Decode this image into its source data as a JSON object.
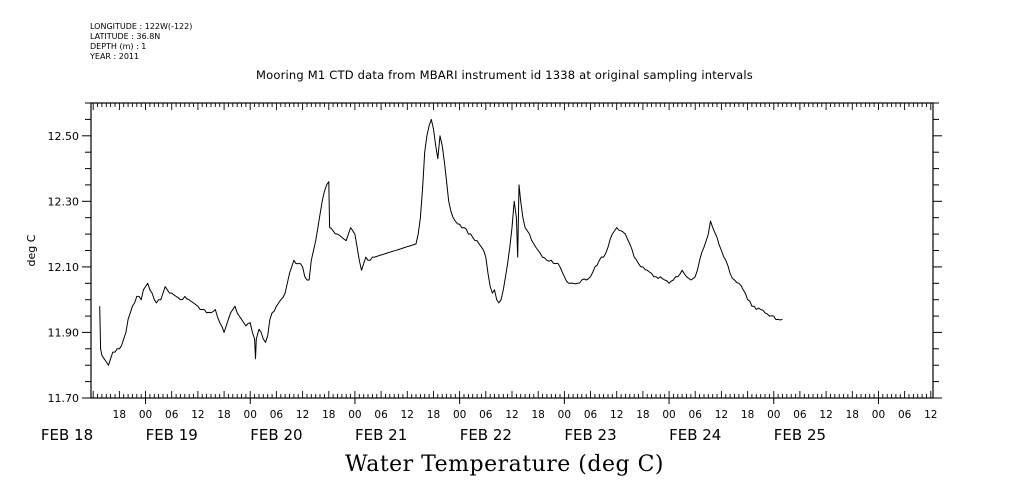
{
  "metadata": {
    "longitude": "LONGITUDE : 122W(-122)",
    "latitude": "LATITUDE : 36.8N",
    "depth": "DEPTH (m) : 1",
    "year": "YEAR : 2011"
  },
  "chart_data": {
    "type": "line",
    "title": "Mooring M1 CTD data from MBARI instrument id 1338 at original sampling intervals",
    "main_title": "Water Temperature (deg C)",
    "xlabel": "",
    "ylabel": "deg C",
    "ylim": [
      11.7,
      12.6
    ],
    "xlim_hours": [
      -12.5,
      180.5
    ],
    "y_ticks": [
      11.7,
      11.9,
      12.1,
      12.3,
      12.5
    ],
    "y_tick_labels": [
      "11.70",
      "11.90",
      "12.10",
      "12.30",
      "12.50"
    ],
    "x_hour_ticks": [
      -6,
      0,
      6,
      12,
      18,
      24,
      30,
      36,
      42,
      48,
      54,
      60,
      66,
      72,
      78,
      84,
      90,
      96,
      102,
      108,
      114,
      120,
      126,
      132,
      138,
      144,
      150,
      156,
      162,
      168,
      174,
      180
    ],
    "x_hour_labels": [
      "18",
      "00",
      "06",
      "12",
      "18",
      "00",
      "06",
      "12",
      "18",
      "00",
      "06",
      "12",
      "18",
      "00",
      "06",
      "12",
      "18",
      "00",
      "06",
      "12",
      "18",
      "00",
      "06",
      "12",
      "18",
      "00",
      "06",
      "12",
      "18",
      "00",
      "06",
      "12"
    ],
    "date_labels": [
      {
        "label": "FEB 18",
        "hour": -18
      },
      {
        "label": "FEB 19",
        "hour": 6
      },
      {
        "label": "FEB 20",
        "hour": 30
      },
      {
        "label": "FEB 21",
        "hour": 54
      },
      {
        "label": "FEB 22",
        "hour": 78
      },
      {
        "label": "FEB 23",
        "hour": 102
      },
      {
        "label": "FEB 24",
        "hour": 126
      },
      {
        "label": "FEB 25",
        "hour": 150
      }
    ],
    "x_units": "hours from 2011-02-19 00:00",
    "series": [
      {
        "values": [
          [
            -10.5,
            11.98
          ],
          [
            -10.3,
            11.85
          ],
          [
            -10,
            11.83
          ],
          [
            -9.5,
            11.82
          ],
          [
            -9,
            11.81
          ],
          [
            -8.5,
            11.8
          ],
          [
            -8,
            11.82
          ],
          [
            -7.5,
            11.84
          ],
          [
            -7,
            11.84
          ],
          [
            -6.5,
            11.85
          ],
          [
            -6,
            11.85
          ],
          [
            -5.5,
            11.86
          ],
          [
            -5,
            11.88
          ],
          [
            -4.5,
            11.9
          ],
          [
            -4,
            11.94
          ],
          [
            -3.5,
            11.96
          ],
          [
            -3,
            11.98
          ],
          [
            -2.5,
            11.99
          ],
          [
            -2,
            12.01
          ],
          [
            -1.5,
            12.01
          ],
          [
            -1,
            12.0
          ],
          [
            -0.5,
            12.03
          ],
          [
            0,
            12.04
          ],
          [
            0.5,
            12.05
          ],
          [
            1,
            12.03
          ],
          [
            1.5,
            12.02
          ],
          [
            2,
            12.0
          ],
          [
            2.5,
            11.99
          ],
          [
            3,
            12.0
          ],
          [
            3.5,
            12.0
          ],
          [
            4,
            12.02
          ],
          [
            4.5,
            12.04
          ],
          [
            5,
            12.03
          ],
          [
            5.5,
            12.02
          ],
          [
            6,
            12.02
          ],
          [
            7,
            12.01
          ],
          [
            8,
            12.0
          ],
          [
            9,
            12.01
          ],
          [
            10,
            12.0
          ],
          [
            11,
            11.99
          ],
          [
            12,
            11.98
          ],
          [
            13,
            11.97
          ],
          [
            14,
            11.96
          ],
          [
            15,
            11.96
          ],
          [
            16,
            11.97
          ],
          [
            17,
            11.93
          ],
          [
            18,
            11.9
          ],
          [
            18.5,
            11.92
          ],
          [
            19,
            11.94
          ],
          [
            19.5,
            11.96
          ],
          [
            20,
            11.97
          ],
          [
            20.5,
            11.98
          ],
          [
            21,
            11.96
          ],
          [
            21.5,
            11.95
          ],
          [
            22,
            11.94
          ],
          [
            22.5,
            11.93
          ],
          [
            23,
            11.92
          ],
          [
            24,
            11.93
          ],
          [
            24.5,
            11.9
          ],
          [
            25,
            11.88
          ],
          [
            25.2,
            11.82
          ],
          [
            25.4,
            11.88
          ],
          [
            26,
            11.91
          ],
          [
            26.5,
            11.9
          ],
          [
            27,
            11.88
          ],
          [
            27.5,
            11.87
          ],
          [
            28,
            11.89
          ],
          [
            28.5,
            11.94
          ],
          [
            29,
            11.96
          ],
          [
            30,
            11.98
          ],
          [
            31,
            12.0
          ],
          [
            32,
            12.02
          ],
          [
            32.5,
            12.05
          ],
          [
            33,
            12.08
          ],
          [
            33.5,
            12.1
          ],
          [
            34,
            12.12
          ],
          [
            34.5,
            12.11
          ],
          [
            35,
            12.11
          ],
          [
            35.5,
            12.11
          ],
          [
            36,
            12.1
          ],
          [
            36.5,
            12.07
          ],
          [
            37,
            12.06
          ],
          [
            37.5,
            12.06
          ],
          [
            38,
            12.12
          ],
          [
            38.5,
            12.15
          ],
          [
            39,
            12.18
          ],
          [
            39.5,
            12.22
          ],
          [
            40,
            12.26
          ],
          [
            40.5,
            12.3
          ],
          [
            41,
            12.33
          ],
          [
            41.5,
            12.35
          ],
          [
            42,
            12.36
          ],
          [
            42.2,
            12.22
          ],
          [
            43,
            12.21
          ],
          [
            44,
            12.2
          ],
          [
            45,
            12.19
          ],
          [
            46,
            12.18
          ],
          [
            46.5,
            12.2
          ],
          [
            47,
            12.22
          ],
          [
            47.5,
            12.21
          ],
          [
            48,
            12.2
          ],
          [
            48.5,
            12.16
          ],
          [
            49,
            12.12
          ],
          [
            49.5,
            12.09
          ],
          [
            50,
            12.11
          ],
          [
            50.5,
            12.13
          ],
          [
            51,
            12.12
          ],
          [
            51.5,
            12.12
          ],
          [
            52,
            12.13
          ],
          [
            52.5,
            12.13
          ],
          [
            62,
            12.17
          ],
          [
            62.5,
            12.2
          ],
          [
            63,
            12.25
          ],
          [
            63.5,
            12.34
          ],
          [
            64,
            12.45
          ],
          [
            64.5,
            12.5
          ],
          [
            65,
            12.53
          ],
          [
            65.5,
            12.55
          ],
          [
            66,
            12.52
          ],
          [
            66.5,
            12.47
          ],
          [
            67,
            12.43
          ],
          [
            67.5,
            12.5
          ],
          [
            68,
            12.47
          ],
          [
            68.5,
            12.42
          ],
          [
            69,
            12.36
          ],
          [
            69.5,
            12.3
          ],
          [
            70,
            12.27
          ],
          [
            70.5,
            12.25
          ],
          [
            71,
            12.24
          ],
          [
            72,
            12.23
          ],
          [
            73,
            12.22
          ],
          [
            74,
            12.2
          ],
          [
            75,
            12.19
          ],
          [
            76,
            12.18
          ],
          [
            77,
            12.16
          ],
          [
            78,
            12.13
          ],
          [
            78.5,
            12.08
          ],
          [
            79,
            12.04
          ],
          [
            79.5,
            12.02
          ],
          [
            80,
            12.03
          ],
          [
            80.5,
            12.0
          ],
          [
            81,
            11.99
          ],
          [
            81.5,
            12.0
          ],
          [
            82,
            12.03
          ],
          [
            82.5,
            12.07
          ],
          [
            83,
            12.11
          ],
          [
            83.5,
            12.16
          ],
          [
            84,
            12.22
          ],
          [
            84.5,
            12.3
          ],
          [
            85,
            12.25
          ],
          [
            85.3,
            12.13
          ],
          [
            85.6,
            12.35
          ],
          [
            86,
            12.3
          ],
          [
            86.5,
            12.25
          ],
          [
            87,
            12.22
          ],
          [
            87.5,
            12.21
          ],
          [
            88,
            12.2
          ],
          [
            89,
            12.17
          ],
          [
            90,
            12.15
          ],
          [
            91,
            12.13
          ],
          [
            92,
            12.12
          ],
          [
            93,
            12.12
          ],
          [
            94,
            12.11
          ],
          [
            95,
            12.1
          ],
          [
            96,
            12.07
          ],
          [
            97,
            12.05
          ],
          [
            98,
            12.05
          ],
          [
            99,
            12.05
          ],
          [
            100,
            12.06
          ],
          [
            101,
            12.06
          ],
          [
            102,
            12.07
          ],
          [
            103,
            12.1
          ],
          [
            104,
            12.12
          ],
          [
            105,
            12.13
          ],
          [
            106,
            12.16
          ],
          [
            107,
            12.2
          ],
          [
            108,
            12.22
          ],
          [
            109,
            12.21
          ],
          [
            110,
            12.2
          ],
          [
            111,
            12.17
          ],
          [
            112,
            12.13
          ],
          [
            113,
            12.11
          ],
          [
            114,
            12.1
          ],
          [
            115,
            12.09
          ],
          [
            116,
            12.08
          ],
          [
            117,
            12.07
          ],
          [
            118,
            12.07
          ],
          [
            119,
            12.06
          ],
          [
            120,
            12.05
          ],
          [
            121,
            12.06
          ],
          [
            122,
            12.07
          ],
          [
            123,
            12.09
          ],
          [
            124,
            12.07
          ],
          [
            125,
            12.06
          ],
          [
            126,
            12.07
          ],
          [
            126.5,
            12.09
          ],
          [
            127,
            12.12
          ],
          [
            128,
            12.16
          ],
          [
            129,
            12.2
          ],
          [
            129.5,
            12.24
          ],
          [
            130,
            12.22
          ],
          [
            131,
            12.19
          ],
          [
            132,
            12.15
          ],
          [
            133,
            12.12
          ],
          [
            134,
            12.08
          ],
          [
            135,
            12.06
          ],
          [
            136,
            12.05
          ],
          [
            137,
            12.03
          ],
          [
            138,
            12.0
          ],
          [
            139,
            11.98
          ],
          [
            140,
            11.97
          ],
          [
            141,
            11.97
          ],
          [
            142,
            11.96
          ],
          [
            143,
            11.95
          ],
          [
            144,
            11.95
          ],
          [
            145,
            11.94
          ],
          [
            146,
            11.94
          ]
        ]
      }
    ]
  }
}
